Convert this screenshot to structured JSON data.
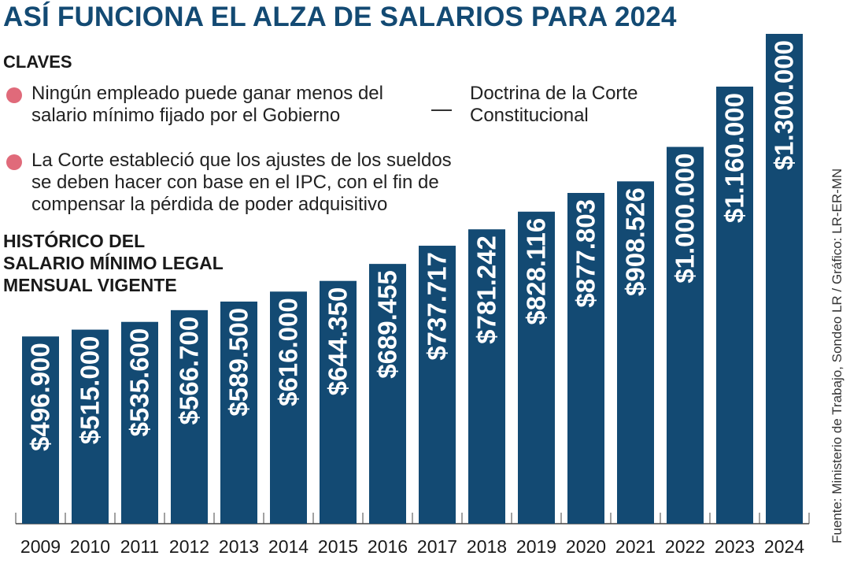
{
  "header": {
    "title": "ASÍ FUNCIONA EL ALZA DE SALARIOS PARA 2024",
    "claves_heading": "CLAVES"
  },
  "claves": {
    "item1": "Ningún empleado puede ganar menos del\nsalario mínimo fijado por el Gobierno",
    "item2": "La Corte estableció que los ajustes de los sueldos\nse deben hacer con base en el IPC, con el fin de\ncompensar la pérdida de poder adquisitivo",
    "source_note": "Doctrina de la Corte\nConstitucional"
  },
  "colors": {
    "bar": "#134a73",
    "accent": "#e06a7a",
    "title": "#134a73"
  },
  "footer": {
    "source": "Fuente: Ministerio de Trabajo, Sondeo LR / Gráfico: LR-ER-MN"
  },
  "chart_data": {
    "type": "bar",
    "title": "HISTÓRICO DEL\nSALARIO MÍNIMO LEGAL\nMENSUAL VIGENTE",
    "xlabel": "",
    "ylabel": "",
    "categories": [
      "2009",
      "2010",
      "2011",
      "2012",
      "2013",
      "2014",
      "2015",
      "2016",
      "2017",
      "2018",
      "2019",
      "2020",
      "2021",
      "2022",
      "2023",
      "2024"
    ],
    "values": [
      496900,
      515000,
      535600,
      566700,
      589500,
      616000,
      644350,
      689455,
      737717,
      781242,
      828116,
      877803,
      908526,
      1000000,
      1160000,
      1300000
    ],
    "labels": [
      "$496.900",
      "$515.000",
      "$535.600",
      "$566.700",
      "$589.500",
      "$616.000",
      "$644.350",
      "$689.455",
      "$737.717",
      "$781.242",
      "$828.116",
      "$877.803",
      "$908.526",
      "$1.000.000",
      "$1.160.000",
      "$1.300.000"
    ],
    "ylim": [
      0,
      1300000
    ],
    "grid": false
  }
}
